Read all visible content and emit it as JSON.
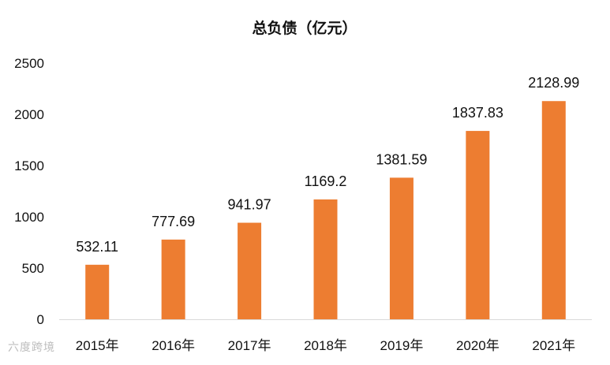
{
  "chart_data": {
    "type": "bar",
    "title": "总负债（亿元）",
    "categories": [
      "2015年",
      "2016年",
      "2017年",
      "2018年",
      "2019年",
      "2020年",
      "2021年"
    ],
    "values": [
      532.11,
      777.69,
      941.97,
      1169.2,
      1381.59,
      1837.83,
      2128.99
    ],
    "data_labels": [
      "532.11",
      "777.69",
      "941.97",
      "1169.2",
      "1381.59",
      "1837.83",
      "2128.99"
    ],
    "xlabel": "",
    "ylabel": "",
    "ylim": [
      0,
      2500
    ],
    "yticks": [
      0,
      500,
      1000,
      1500,
      2000,
      2500
    ],
    "grid": false,
    "legend": "none",
    "bar_color": "#ED7D31"
  },
  "watermark": "六度跨境"
}
